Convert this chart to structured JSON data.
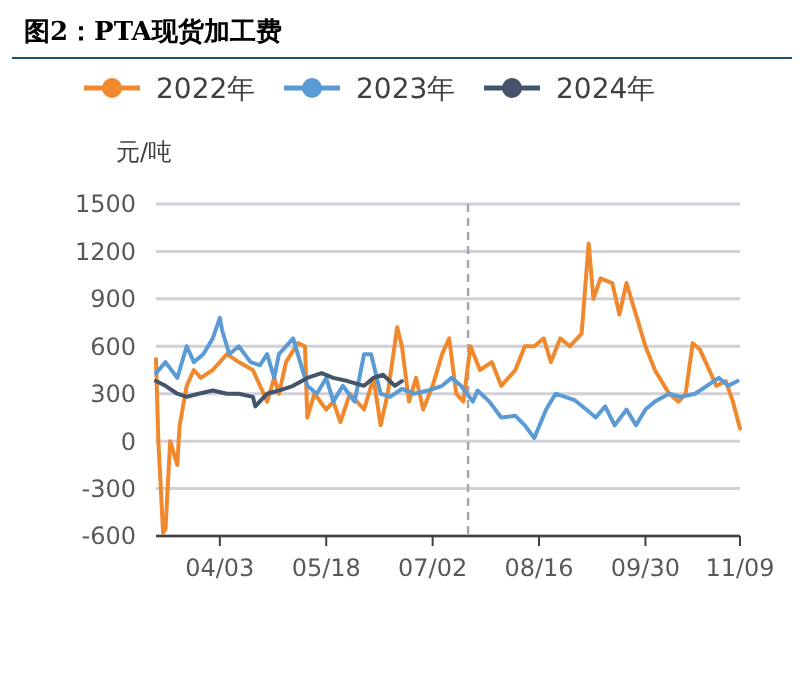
{
  "chart_data": {
    "type": "line",
    "title": "图2：PTA现货加工费",
    "ylabel": "元/吨",
    "xlim": [
      "--03-07",
      "--11-09"
    ],
    "xticks": [
      {
        "value": "--04-03",
        "label": "04/03"
      },
      {
        "value": "--05-18",
        "label": "05/18"
      },
      {
        "value": "--07-02",
        "label": "07/02"
      },
      {
        "value": "--08-16",
        "label": "08/16"
      },
      {
        "value": "--09-30",
        "label": "09/30"
      },
      {
        "value": "--11-09",
        "label": "11/09"
      }
    ],
    "ylim": [
      -600,
      1500
    ],
    "yticks": [
      -600,
      -300,
      0,
      300,
      600,
      900,
      1200,
      1500
    ],
    "grid": "y",
    "legend": "top",
    "line_style": "solid",
    "ref_lines": [
      {
        "axis": "x",
        "value": "--07-17",
        "color": "#a6a6a6",
        "line_style": "dashed"
      }
    ],
    "series": [
      {
        "name": "2022年",
        "color": "#f0892d",
        "x": [
          "--03-07",
          "--03-08",
          "--03-10",
          "--03-11",
          "--03-13",
          "--03-15",
          "--03-16",
          "--03-17",
          "--03-20",
          "--03-23",
          "--03-26",
          "--03-31",
          "--04-06",
          "--04-11",
          "--04-17",
          "--04-23",
          "--04-26",
          "--04-28",
          "--05-01",
          "--05-06",
          "--05-09",
          "--05-10",
          "--05-13",
          "--05-18",
          "--05-21",
          "--05-24",
          "--05-28",
          "--06-03",
          "--06-07",
          "--06-10",
          "--06-13",
          "--06-17",
          "--06-19",
          "--06-22",
          "--06-25",
          "--06-28",
          "--07-02",
          "--07-06",
          "--07-09",
          "--07-12",
          "--07-15",
          "--07-18",
          "--07-22",
          "--07-27",
          "--07-31",
          "--08-06",
          "--08-10",
          "--08-14",
          "--08-18",
          "--08-21",
          "--08-25",
          "--08-29",
          "--09-03",
          "--09-06",
          "--09-08",
          "--09-11",
          "--09-16",
          "--09-19",
          "--09-22",
          "--09-26",
          "--09-30",
          "--10-04",
          "--10-10",
          "--10-14",
          "--10-17",
          "--10-20",
          "--10-23",
          "--10-27",
          "--10-30",
          "--11-03",
          "--11-06",
          "--11-09"
        ],
        "values": [
          520,
          0,
          -580,
          -560,
          0,
          -100,
          -150,
          100,
          350,
          450,
          400,
          450,
          550,
          500,
          450,
          250,
          400,
          300,
          500,
          620,
          600,
          150,
          300,
          200,
          250,
          120,
          300,
          200,
          400,
          100,
          300,
          720,
          600,
          250,
          400,
          200,
          350,
          550,
          650,
          300,
          250,
          600,
          450,
          500,
          350,
          450,
          600,
          600,
          650,
          500,
          650,
          600,
          680,
          1250,
          900,
          1030,
          1000,
          800,
          1000,
          800,
          600,
          450,
          300,
          250,
          300,
          620,
          580,
          450,
          350,
          380,
          250,
          80
        ]
      },
      {
        "name": "2023年",
        "color": "#5b9bd5",
        "x": [
          "--03-07",
          "--03-11",
          "--03-16",
          "--03-20",
          "--03-23",
          "--03-27",
          "--03-31",
          "--04-03",
          "--04-04",
          "--04-07",
          "--04-11",
          "--04-16",
          "--04-20",
          "--04-23",
          "--04-26",
          "--04-28",
          "--05-01",
          "--05-04",
          "--05-07",
          "--05-10",
          "--05-14",
          "--05-18",
          "--05-21",
          "--05-25",
          "--05-30",
          "--06-03",
          "--06-06",
          "--06-10",
          "--06-14",
          "--06-19",
          "--06-24",
          "--06-30",
          "--07-06",
          "--07-10",
          "--07-14",
          "--07-19",
          "--07-21",
          "--07-26",
          "--07-31",
          "--08-06",
          "--08-10",
          "--08-14",
          "--08-19",
          "--08-23",
          "--08-27",
          "--08-31",
          "--09-05",
          "--09-09",
          "--09-13",
          "--09-17",
          "--09-22",
          "--09-26",
          "--09-30",
          "--10-04",
          "--10-10",
          "--10-15",
          "--10-21",
          "--10-26",
          "--10-31",
          "--11-04",
          "--11-08"
        ],
        "values": [
          430,
          500,
          400,
          600,
          500,
          550,
          650,
          780,
          700,
          550,
          600,
          500,
          480,
          550,
          400,
          550,
          600,
          650,
          500,
          350,
          300,
          400,
          250,
          350,
          250,
          550,
          550,
          300,
          280,
          330,
          300,
          320,
          350,
          400,
          350,
          250,
          320,
          250,
          150,
          160,
          100,
          20,
          200,
          300,
          280,
          260,
          200,
          150,
          220,
          100,
          200,
          100,
          200,
          250,
          300,
          280,
          300,
          350,
          400,
          350,
          380
        ]
      },
      {
        "name": "2024年",
        "color": "#44546a",
        "x": [
          "--03-07",
          "--03-11",
          "--03-16",
          "--03-20",
          "--03-25",
          "--03-31",
          "--04-06",
          "--04-11",
          "--04-17",
          "--04-18",
          "--04-23",
          "--04-28",
          "--05-04",
          "--05-10",
          "--05-16",
          "--05-21",
          "--05-27",
          "--06-03",
          "--06-07",
          "--06-11",
          "--06-16",
          "--06-19"
        ],
        "values": [
          380,
          350,
          300,
          280,
          300,
          320,
          300,
          300,
          280,
          220,
          300,
          320,
          350,
          400,
          430,
          400,
          380,
          350,
          400,
          420,
          350,
          380
        ]
      }
    ]
  }
}
